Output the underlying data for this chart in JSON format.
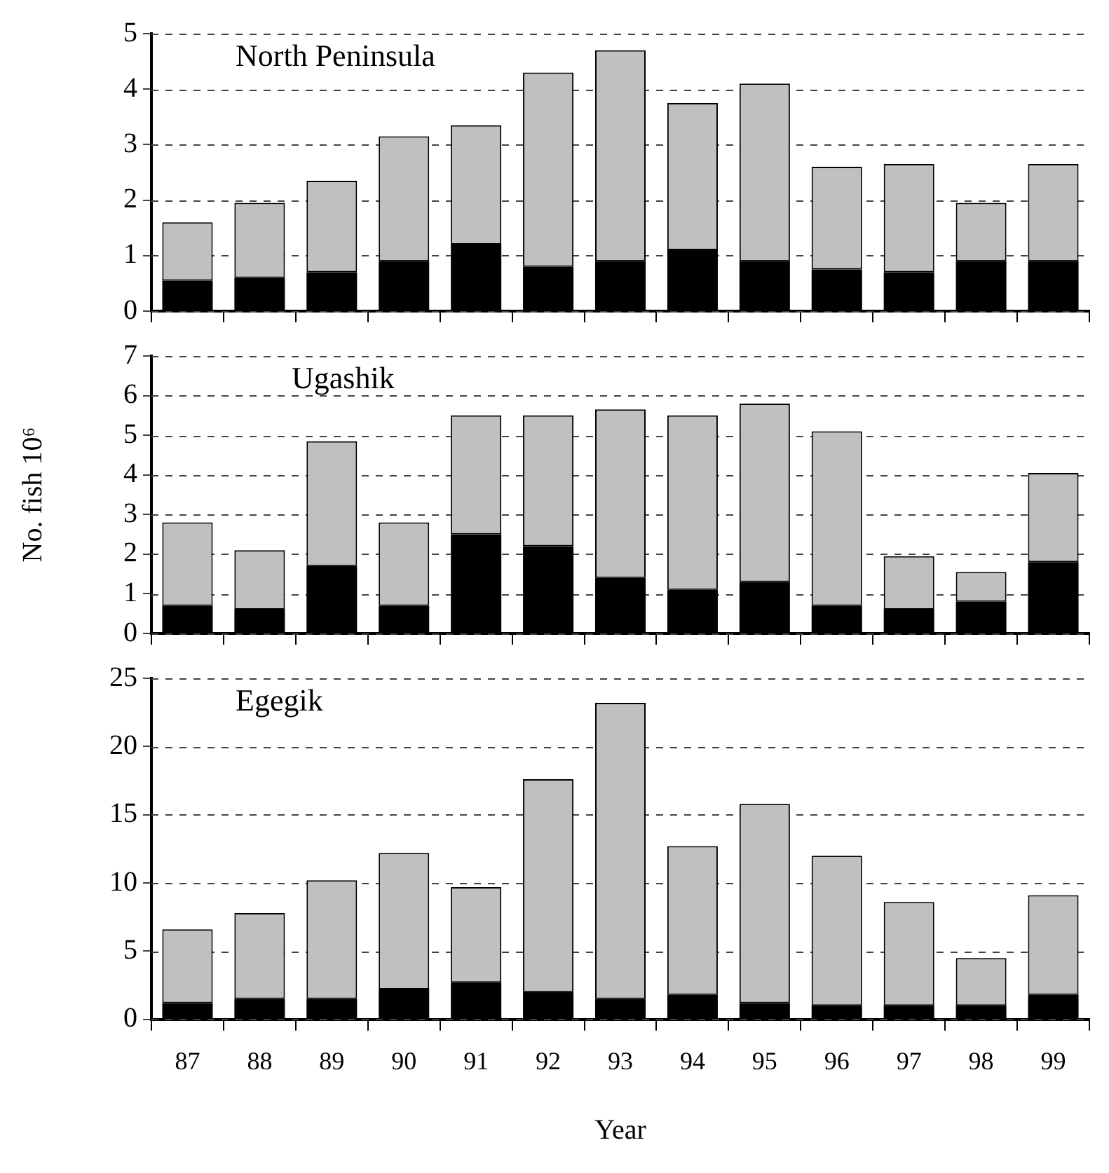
{
  "chart_data": [
    {
      "type": "bar",
      "title": "North Peninsula",
      "categories": [
        "87",
        "88",
        "89",
        "90",
        "91",
        "92",
        "93",
        "94",
        "95",
        "96",
        "97",
        "98",
        "99"
      ],
      "stacked": true,
      "series": [
        {
          "color": "#000000",
          "values": [
            0.55,
            0.6,
            0.7,
            0.9,
            1.2,
            0.8,
            0.9,
            1.1,
            0.9,
            0.75,
            0.7,
            0.9,
            0.9
          ]
        },
        {
          "color": "#c0c0c0",
          "values": [
            1.05,
            1.35,
            1.65,
            2.25,
            2.15,
            3.5,
            3.8,
            2.65,
            3.2,
            1.85,
            1.95,
            1.05,
            1.75
          ]
        }
      ],
      "ylim": [
        0,
        5
      ],
      "yticks": [
        0,
        1,
        2,
        3,
        4,
        5
      ],
      "grid": "y",
      "tick_labels": "y"
    },
    {
      "type": "bar",
      "title": "Ugashik",
      "ylabel": "No. fish 10⁶",
      "categories": [
        "87",
        "88",
        "89",
        "90",
        "91",
        "92",
        "93",
        "94",
        "95",
        "96",
        "97",
        "98",
        "99"
      ],
      "stacked": true,
      "series": [
        {
          "color": "#000000",
          "values": [
            0.7,
            0.6,
            1.7,
            0.7,
            2.5,
            2.2,
            1.4,
            1.1,
            1.3,
            0.7,
            0.6,
            0.8,
            1.8
          ]
        },
        {
          "color": "#c0c0c0",
          "values": [
            2.1,
            1.5,
            3.15,
            2.1,
            3.0,
            3.3,
            4.25,
            4.4,
            4.5,
            4.4,
            1.35,
            0.75,
            2.25
          ]
        }
      ],
      "ylim": [
        0,
        7
      ],
      "yticks": [
        0,
        1,
        2,
        3,
        4,
        5,
        6,
        7
      ],
      "grid": "y",
      "tick_labels": "y"
    },
    {
      "type": "bar",
      "title": "Egegik",
      "xlabel": "Year",
      "categories": [
        "87",
        "88",
        "89",
        "90",
        "91",
        "92",
        "93",
        "94",
        "95",
        "96",
        "97",
        "98",
        "99"
      ],
      "stacked": true,
      "series": [
        {
          "color": "#000000",
          "values": [
            1.2,
            1.5,
            1.5,
            2.2,
            2.7,
            2.0,
            1.5,
            1.8,
            1.2,
            1.0,
            1.0,
            1.0,
            1.8
          ]
        },
        {
          "color": "#c0c0c0",
          "values": [
            5.4,
            6.3,
            8.7,
            10.0,
            7.0,
            15.6,
            21.7,
            10.9,
            14.6,
            11.0,
            7.6,
            3.5,
            7.3
          ]
        }
      ],
      "ylim": [
        0,
        25
      ],
      "yticks": [
        0,
        5,
        10,
        15,
        20,
        25
      ],
      "grid": "y"
    }
  ]
}
